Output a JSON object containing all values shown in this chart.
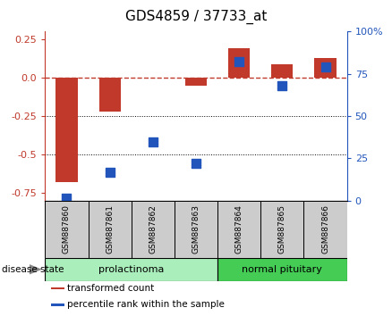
{
  "title": "GDS4859 / 37733_at",
  "samples": [
    "GSM887860",
    "GSM887861",
    "GSM887862",
    "GSM887863",
    "GSM887864",
    "GSM887865",
    "GSM887866"
  ],
  "transformed_count": [
    -0.68,
    -0.22,
    0.0,
    -0.05,
    0.19,
    0.09,
    0.13
  ],
  "percentile_rank": [
    1.5,
    17.0,
    35.0,
    22.0,
    82.0,
    68.0,
    79.0
  ],
  "bar_color_red": "#c0392b",
  "bar_color_blue": "#2255bb",
  "ylim_left": [
    -0.8,
    0.3
  ],
  "ylim_right": [
    0,
    100
  ],
  "yticks_left": [
    -0.75,
    -0.5,
    -0.25,
    0.0,
    0.25
  ],
  "yticks_right": [
    0,
    25,
    50,
    75,
    100
  ],
  "hline_dotted": [
    -0.25,
    -0.5
  ],
  "groups": [
    {
      "label": "prolactinoma",
      "indices": [
        0,
        1,
        2,
        3
      ],
      "color": "#aaeebb"
    },
    {
      "label": "normal pituitary",
      "indices": [
        4,
        5,
        6
      ],
      "color": "#44cc55"
    }
  ],
  "disease_state_label": "disease state",
  "legend": [
    {
      "label": "transformed count",
      "color": "#c0392b"
    },
    {
      "label": "percentile rank within the sample",
      "color": "#2255bb"
    }
  ],
  "bar_width": 0.5,
  "dot_size": 45,
  "sample_box_color": "#cccccc",
  "group_border_color": "#000000"
}
